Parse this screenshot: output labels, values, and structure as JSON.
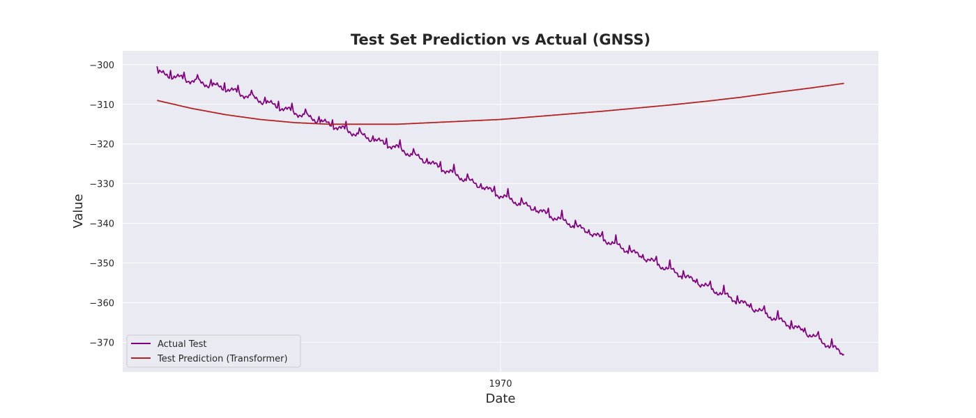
{
  "chart_data": {
    "type": "line",
    "title": "Test Set Prediction vs Actual (GNSS)",
    "xlabel": "Date",
    "ylabel": "Value",
    "x_tick_labels": [
      {
        "x": 0,
        "label": "1970"
      }
    ],
    "xlim": [
      -0.55,
      0.55
    ],
    "ylim": [
      -377.5,
      -296.5
    ],
    "y_ticks": [
      -300,
      -310,
      -320,
      -330,
      -340,
      -350,
      -360,
      -370
    ],
    "y_tick_labels": [
      "−300",
      "−310",
      "−320",
      "−330",
      "−340",
      "−350",
      "−360",
      "−370"
    ],
    "grid": true,
    "legend_position": "lower-left",
    "series": [
      {
        "name": "Actual Test",
        "color": "#800080",
        "x": [
          -0.5,
          -0.45,
          -0.4,
          -0.35,
          -0.3,
          -0.25,
          -0.2,
          -0.15,
          -0.1,
          -0.05,
          0.0,
          0.05,
          0.1,
          0.15,
          0.2,
          0.25,
          0.3,
          0.35,
          0.4,
          0.45,
          0.5
        ],
        "y": [
          -302,
          -304,
          -306,
          -309,
          -312,
          -315,
          -318,
          -321,
          -325,
          -329,
          -333,
          -336.5,
          -340,
          -344,
          -348,
          -352,
          -356,
          -360,
          -364,
          -368,
          -373
        ]
      },
      {
        "name": "Test Prediction (Transformer)",
        "color": "#b22222",
        "x": [
          -0.5,
          -0.45,
          -0.4,
          -0.35,
          -0.3,
          -0.25,
          -0.2,
          -0.15,
          -0.1,
          -0.05,
          0.0,
          0.05,
          0.1,
          0.15,
          0.2,
          0.25,
          0.3,
          0.35,
          0.4,
          0.45,
          0.5
        ],
        "y": [
          -309,
          -311,
          -312.6,
          -313.8,
          -314.6,
          -315,
          -315,
          -315,
          -314.6,
          -314.2,
          -313.8,
          -313.1,
          -312.4,
          -311.7,
          -310.9,
          -310.1,
          -309.2,
          -308.2,
          -307,
          -305.9,
          -304.7
        ]
      }
    ]
  }
}
